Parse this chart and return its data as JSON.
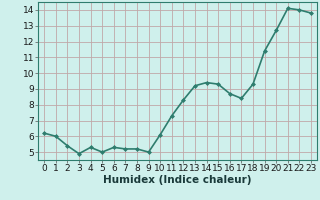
{
  "x": [
    0,
    1,
    2,
    3,
    4,
    5,
    6,
    7,
    8,
    9,
    10,
    11,
    12,
    13,
    14,
    15,
    16,
    17,
    18,
    19,
    20,
    21,
    22,
    23
  ],
  "y": [
    6.2,
    6.0,
    5.4,
    4.9,
    5.3,
    5.0,
    5.3,
    5.2,
    5.2,
    5.0,
    6.1,
    7.3,
    8.3,
    9.2,
    9.4,
    9.3,
    8.7,
    8.4,
    9.3,
    11.4,
    12.7,
    14.1,
    14.0,
    13.8
  ],
  "line_color": "#2e7d6e",
  "marker": "D",
  "marker_size": 2.0,
  "bg_color": "#cff0ec",
  "grid_color": "#c0a8a8",
  "xlabel": "Humidex (Indice chaleur)",
  "xlim": [
    -0.5,
    23.5
  ],
  "ylim": [
    4.5,
    14.5
  ],
  "yticks": [
    5,
    6,
    7,
    8,
    9,
    10,
    11,
    12,
    13,
    14
  ],
  "xticks": [
    0,
    1,
    2,
    3,
    4,
    5,
    6,
    7,
    8,
    9,
    10,
    11,
    12,
    13,
    14,
    15,
    16,
    17,
    18,
    19,
    20,
    21,
    22,
    23
  ],
  "tick_label_fontsize": 6.5,
  "xlabel_fontsize": 7.5,
  "line_width": 1.2
}
